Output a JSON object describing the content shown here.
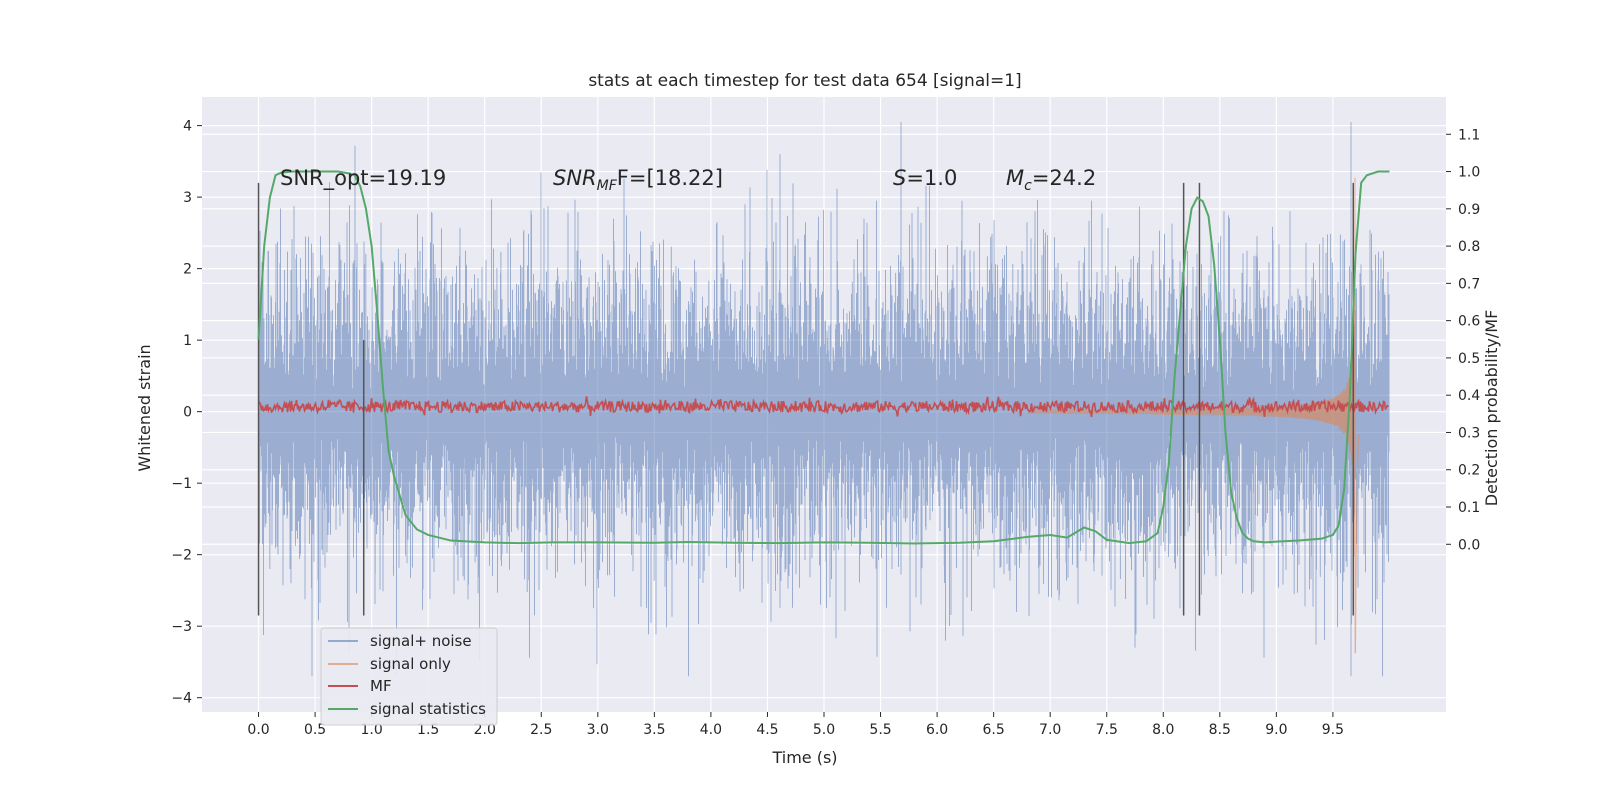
{
  "chart_data": {
    "type": "line",
    "title": "stats at each timestep for test data 654 [signal=1]",
    "xlabel": "Time (s)",
    "ylabel": "Whitened strain",
    "y2label": "Detection probability/MF",
    "xlim": [
      -0.5,
      10.5
    ],
    "ylim": [
      -4.2,
      4.4
    ],
    "y2lim": [
      -0.45,
      1.2
    ],
    "x_ticks": [
      "0.0",
      "0.5",
      "1.0",
      "1.5",
      "2.0",
      "2.5",
      "3.0",
      "3.5",
      "4.0",
      "4.5",
      "5.0",
      "5.5",
      "6.0",
      "6.5",
      "7.0",
      "7.5",
      "8.0",
      "8.5",
      "9.0",
      "9.5"
    ],
    "y_ticks": [
      "−4",
      "−3",
      "−2",
      "−1",
      "0",
      "1",
      "2",
      "3",
      "4"
    ],
    "y2_ticks": [
      "0.0",
      "0.1",
      "0.2",
      "0.3",
      "0.4",
      "0.5",
      "0.6",
      "0.7",
      "0.8",
      "0.9",
      "1.0",
      "1.1"
    ],
    "grid": true,
    "legend_position": "lower-left",
    "annotations": {
      "snr_opt": "SNR_opt=19.19",
      "snr_mf_main": "SNR",
      "snr_mf_sub": "MF",
      "snr_mf_rest": "F=[18.22]",
      "s_main": "S",
      "s_rest": "=1.0",
      "mc_main": "M",
      "mc_sub": "c",
      "mc_rest": "=24.2"
    },
    "vertical_markers": [
      {
        "x": 0.0,
        "ymin": -2.85,
        "ymax": 3.2
      },
      {
        "x": 0.93,
        "ymin": -2.85,
        "ymax": 1.0
      },
      {
        "x": 8.18,
        "ymin": -2.85,
        "ymax": 3.2
      },
      {
        "x": 8.32,
        "ymin": -2.85,
        "ymax": 3.2
      },
      {
        "x": 9.68,
        "ymin": -2.85,
        "ymax": 3.2
      }
    ],
    "series": [
      {
        "name": "signal+ noise",
        "color": "#4c72b0",
        "axis": "left",
        "x_range": [
          0.0,
          10.0
        ],
        "spread_sigma": 0.9,
        "approx_range": [
          -3.7,
          4.05
        ]
      },
      {
        "name": "signal only",
        "color": "#dd8452",
        "axis": "left",
        "chirp_end": 9.7,
        "peak_amplitude": 3.4
      },
      {
        "name": "MF",
        "color": "#c44e52",
        "axis": "left",
        "center": 0.07,
        "band": 0.08
      },
      {
        "name": "signal statistics",
        "color": "#55a868",
        "axis": "right",
        "x": [
          0.0,
          0.05,
          0.1,
          0.15,
          0.2,
          0.3,
          0.4,
          0.5,
          0.6,
          0.7,
          0.8,
          0.85,
          0.9,
          0.95,
          1.0,
          1.05,
          1.1,
          1.15,
          1.2,
          1.3,
          1.4,
          1.5,
          1.7,
          2.0,
          2.3,
          2.6,
          3.0,
          3.5,
          3.8,
          4.2,
          4.6,
          5.0,
          5.4,
          5.8,
          6.2,
          6.5,
          6.8,
          7.0,
          7.15,
          7.3,
          7.4,
          7.5,
          7.7,
          7.85,
          7.95,
          8.0,
          8.05,
          8.1,
          8.2,
          8.25,
          8.3,
          8.35,
          8.4,
          8.45,
          8.5,
          8.55,
          8.6,
          8.65,
          8.7,
          8.75,
          8.8,
          8.9,
          9.0,
          9.2,
          9.4,
          9.5,
          9.55,
          9.6,
          9.65,
          9.7,
          9.75,
          9.8,
          9.9,
          10.0
        ],
        "values": [
          0.55,
          0.8,
          0.93,
          0.99,
          0.997,
          1.0,
          1.0,
          1.0,
          1.0,
          1.0,
          0.995,
          0.99,
          0.96,
          0.9,
          0.8,
          0.62,
          0.42,
          0.25,
          0.18,
          0.078,
          0.04,
          0.025,
          0.01,
          0.005,
          0.003,
          0.005,
          0.005,
          0.004,
          0.006,
          0.004,
          0.003,
          0.005,
          0.004,
          0.002,
          0.004,
          0.008,
          0.02,
          0.025,
          0.018,
          0.045,
          0.035,
          0.012,
          0.003,
          0.008,
          0.03,
          0.1,
          0.22,
          0.45,
          0.8,
          0.9,
          0.93,
          0.92,
          0.88,
          0.75,
          0.55,
          0.3,
          0.14,
          0.07,
          0.03,
          0.015,
          0.008,
          0.005,
          0.007,
          0.01,
          0.015,
          0.025,
          0.05,
          0.15,
          0.4,
          0.78,
          0.97,
          0.99,
          1.0,
          1.0
        ]
      }
    ]
  }
}
